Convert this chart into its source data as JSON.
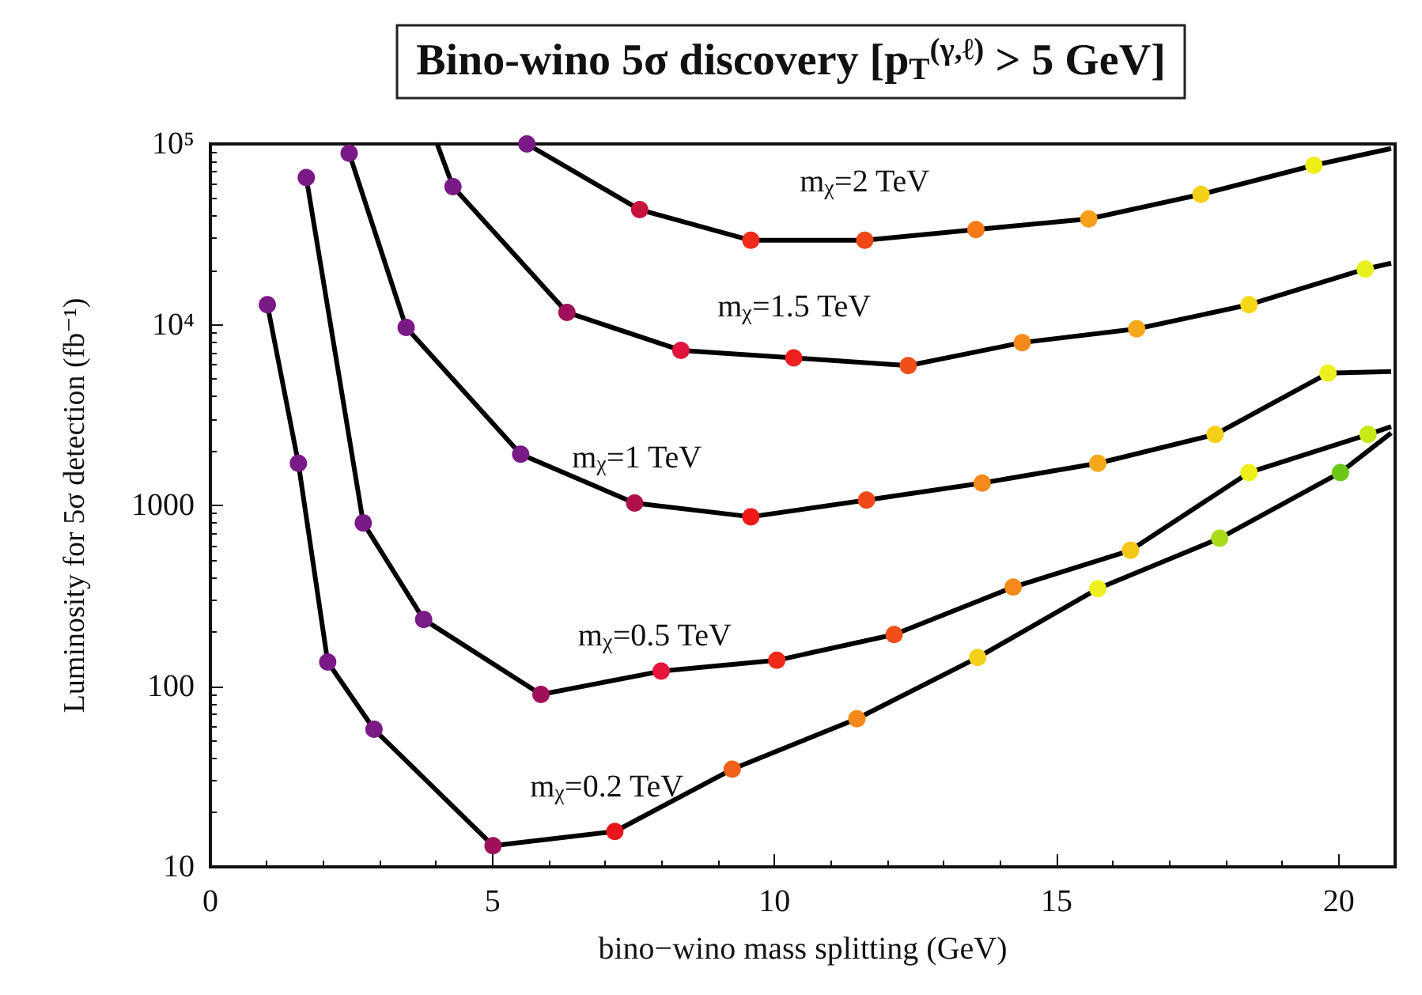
{
  "chart_data": {
    "type": "line",
    "title": "Bino-wino 5σ discovery [p$_{T}$$^{(γ,ℓ)}$ > 5 GeV]",
    "xlabel": "bino−wino mass splitting (GeV)",
    "ylabel": "Luminosity for 5σ detection (fb⁻¹)",
    "log": "y",
    "xlim": [
      0,
      21
    ],
    "xticks": [
      0,
      5,
      10,
      15,
      20
    ],
    "ylim": [
      10,
      100000
    ],
    "yticks": [
      10,
      100,
      1000,
      {
        "value": 10000,
        "label": "10⁴"
      },
      {
        "value": 100000,
        "label": "10⁵"
      }
    ],
    "marker": "circle",
    "grid": false,
    "legend": false,
    "series": [
      {
        "name": "m$_{χ}$=2 TeV",
        "color": "#000000",
        "x": [
          5.61,
          7.61,
          9.58,
          11.6,
          13.57,
          15.57,
          17.56,
          19.56,
          20.93
        ],
        "values": [
          100000,
          43300,
          29300,
          29300,
          33600,
          38500,
          52600,
          76200,
          94400
        ],
        "colors": [
          "#7a1a86",
          "#c8143c",
          "#f02a1a",
          "#f04818",
          "#f57a1a",
          "#f5a018",
          "#f5d018",
          "#f0ee18",
          null
        ]
      },
      {
        "name": "m$_{χ}$=1.5 TeV",
        "color": "#000000",
        "x": [
          4.02,
          4.3,
          6.32,
          8.34,
          10.34,
          12.37,
          14.39,
          16.42,
          18.41,
          20.47,
          20.93
        ],
        "values": [
          100000,
          58000,
          11700,
          7210,
          6550,
          5940,
          7960,
          9480,
          12900,
          20300,
          21900
        ],
        "colors": [
          null,
          "#7a1a86",
          "#a0105a",
          "#e0143c",
          "#f02020",
          "#f05018",
          "#f58a1a",
          "#f5a818",
          "#f5d818",
          "#e8f020",
          null
        ]
      },
      {
        "name": "m$_{χ}$=1 TeV",
        "color": "#000000",
        "x": [
          2.46,
          3.47,
          5.5,
          7.52,
          9.58,
          11.63,
          13.68,
          15.73,
          17.81,
          19.81,
          20.93
        ],
        "values": [
          88900,
          9660,
          1920,
          1030,
          865,
          1070,
          1330,
          1710,
          2470,
          5390,
          5500
        ],
        "colors": [
          "#7a1a86",
          "#7a1a86",
          "#7a1a86",
          "#b0104a",
          "#f01818",
          "#f04818",
          "#f58a1a",
          "#f5a818",
          "#f5d018",
          "#f0f020",
          null
        ]
      },
      {
        "name": "m$_{χ}$=0.5 TeV",
        "color": "#000000",
        "x": [
          1.7,
          2.71,
          3.78,
          5.86,
          7.99,
          10.04,
          12.12,
          14.23,
          16.31,
          18.41,
          20.52,
          20.93
        ],
        "values": [
          65200,
          800,
          234,
          90,
          121,
          139,
          193,
          353,
          564,
          1520,
          2470,
          2730
        ],
        "colors": [
          "#7a1a86",
          "#7a1a86",
          "#7a1a86",
          "#a0105a",
          "#e8143c",
          "#f02a1a",
          "#f05018",
          "#f58a1a",
          "#f5c818",
          "#f0ee18",
          "#c8e818",
          null
        ]
      },
      {
        "name": "m$_{χ}$=0.2 TeV",
        "color": "#000000",
        "x": [
          1.01,
          1.56,
          2.08,
          2.9,
          5.01,
          7.17,
          9.25,
          11.46,
          13.6,
          15.73,
          17.89,
          20.03,
          20.93
        ],
        "values": [
          12900,
          1710,
          136,
          57.7,
          13.1,
          15.7,
          34.7,
          66,
          144,
          346,
          658,
          1520,
          2520
        ],
        "colors": [
          "#7a1a86",
          "#7a1a86",
          "#7a1a86",
          "#7a1a86",
          "#a0105a",
          "#e8141e",
          "#f06018",
          "#f58a1a",
          "#f5d018",
          "#f0f020",
          "#a8dc18",
          "#6cc818",
          null
        ]
      }
    ]
  }
}
